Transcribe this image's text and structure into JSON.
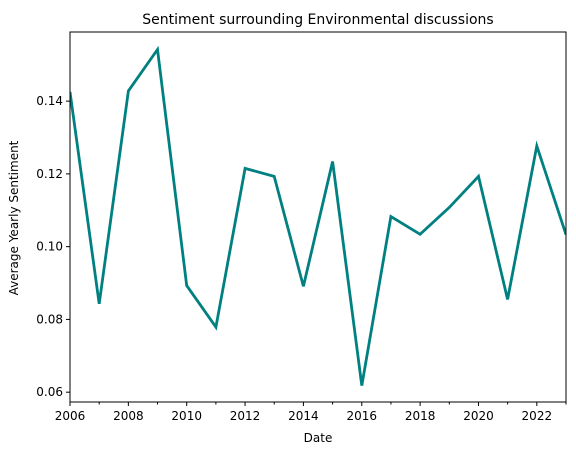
{
  "chart_data": {
    "type": "line",
    "title": "Sentiment surrounding Environmental discussions",
    "xlabel": "Date",
    "ylabel": "Average Yearly Sentiment",
    "x": [
      2006,
      2007,
      2008,
      2009,
      2010,
      2011,
      2012,
      2013,
      2014,
      2015,
      2016,
      2017,
      2018,
      2019,
      2020,
      2021,
      2022,
      2023
    ],
    "series": [
      {
        "values": [
          0.1425,
          0.0843,
          0.1428,
          0.1542,
          0.0893,
          0.0779,
          0.1215,
          0.1193,
          0.0891,
          0.1234,
          0.0618,
          0.1083,
          0.1034,
          0.1108,
          0.1193,
          0.0855,
          0.1277,
          0.1033
        ],
        "color": "#008080"
      }
    ],
    "xlim": [
      2006,
      2023
    ],
    "ylim": [
      0.0573,
      0.159
    ],
    "x_major_ticks": [
      "2006",
      "2008",
      "2010",
      "2012",
      "2014",
      "2016",
      "2018",
      "2020",
      "2022"
    ],
    "y_ticks": [
      "0.06",
      "0.08",
      "0.10",
      "0.12",
      "0.14"
    ],
    "grid": false
  }
}
